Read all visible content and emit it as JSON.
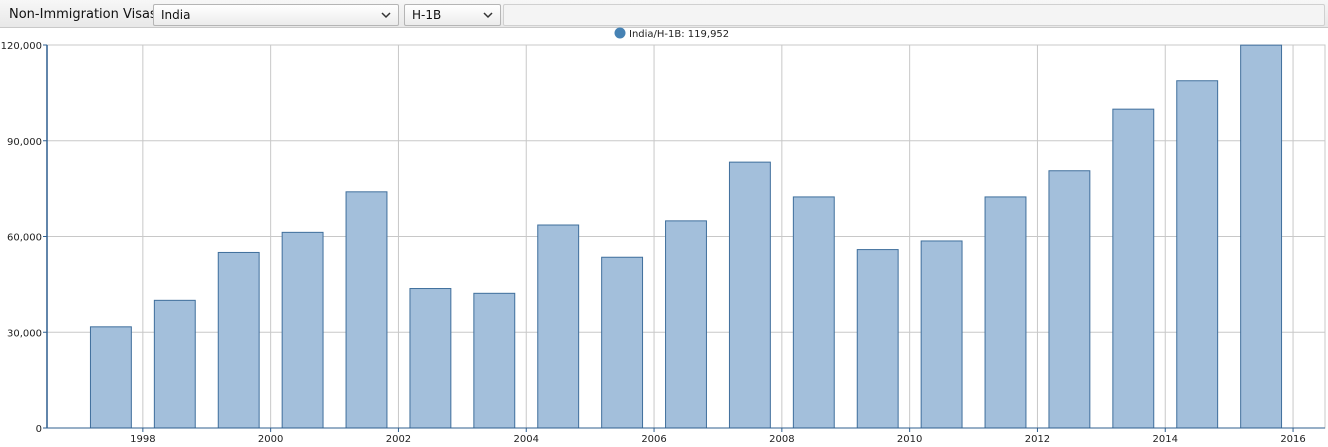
{
  "toolbar": {
    "title": "Non-Immigration Visas",
    "country_select": {
      "value": "India",
      "icon": "chevron-down-icon"
    },
    "visa_select": {
      "value": "H-1B",
      "icon": "chevron-down-icon"
    }
  },
  "legend": {
    "text": "India/H-1B: 119,952",
    "color": "#4682b4"
  },
  "colors": {
    "bar_fill": "#a3bfdb",
    "bar_stroke": "#3f6f9c",
    "grid": "#c8c8c8",
    "axis": "#2f5f8f"
  },
  "chart_data": {
    "type": "bar",
    "categories": [
      "1997",
      "1998",
      "1999",
      "2000",
      "2001",
      "2002",
      "2003",
      "2004",
      "2005",
      "2006",
      "2007",
      "2008",
      "2009",
      "2010",
      "2011",
      "2012",
      "2013",
      "2014",
      "2015"
    ],
    "series": [
      {
        "name": "India/H-1B",
        "values": [
          31700,
          40000,
          55000,
          61300,
          74000,
          43700,
          42200,
          63600,
          53500,
          64900,
          83300,
          72400,
          55900,
          58600,
          72400,
          80600,
          99900,
          108800,
          119952
        ]
      }
    ],
    "x_tick_labels": [
      "1998",
      "2000",
      "2002",
      "2004",
      "2006",
      "2008",
      "2010",
      "2012",
      "2014",
      "2016"
    ],
    "y_tick_labels": [
      "0",
      "30,000",
      "60,000",
      "90,000",
      "120,000"
    ],
    "ylim": [
      0,
      120000
    ],
    "xlim": [
      1996.5,
      2016.5
    ],
    "grid": true,
    "legend_position": "top-center"
  }
}
